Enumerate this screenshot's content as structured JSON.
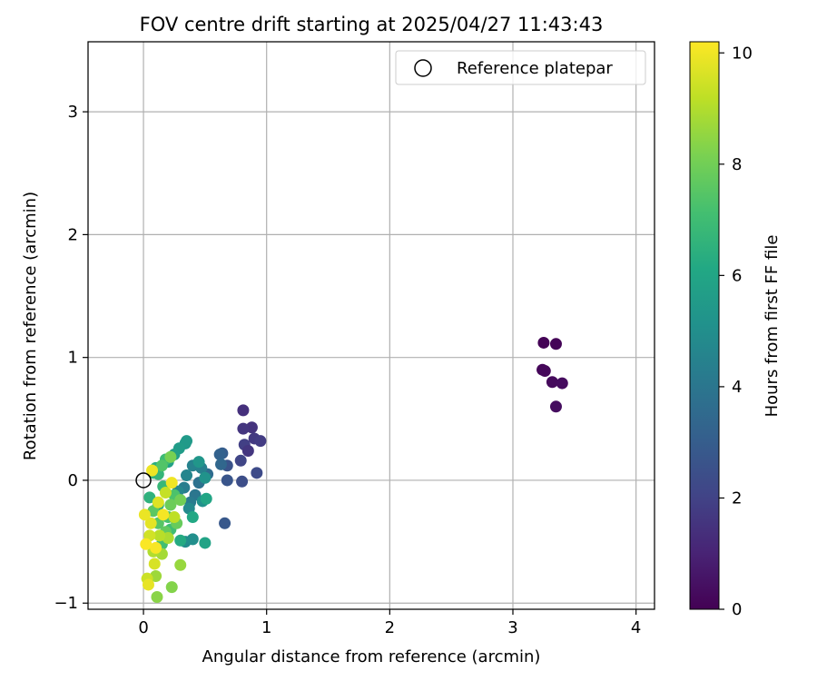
{
  "chart_data": {
    "type": "scatter",
    "title": "FOV centre drift starting at 2025/04/27 11:43:43",
    "xlabel": "Angular distance from reference (arcmin)",
    "ylabel": "Rotation from reference (arcmin)",
    "xlim": [
      -0.45,
      4.15
    ],
    "ylim": [
      -1.05,
      3.57
    ],
    "xticks": [
      0,
      1,
      2,
      3,
      4
    ],
    "yticks": [
      -1,
      0,
      1,
      2,
      3
    ],
    "xtick_labels": [
      "0",
      "1",
      "2",
      "3",
      "4"
    ],
    "ytick_labels": [
      "−1",
      "0",
      "1",
      "2",
      "3"
    ],
    "grid": true,
    "legend": {
      "placement": "top-right",
      "entries": [
        {
          "label": "Reference platepar",
          "marker": "open-circle"
        }
      ]
    },
    "reference_point": {
      "x": 0,
      "y": 0
    },
    "colorbar": {
      "label": "Hours from first FF file",
      "colormap": "viridis",
      "range": [
        0,
        10.2
      ],
      "ticks": [
        0,
        2,
        4,
        6,
        8,
        10
      ],
      "tick_labels": [
        "0",
        "2",
        "4",
        "6",
        "8",
        "10"
      ]
    },
    "points": [
      {
        "x": 3.25,
        "y": 1.12,
        "c": 0.05
      },
      {
        "x": 3.35,
        "y": 1.11,
        "c": 0.1
      },
      {
        "x": 3.24,
        "y": 0.9,
        "c": 0.15
      },
      {
        "x": 3.26,
        "y": 0.89,
        "c": 0.2
      },
      {
        "x": 3.32,
        "y": 0.8,
        "c": 0.25
      },
      {
        "x": 3.4,
        "y": 0.79,
        "c": 0.3
      },
      {
        "x": 3.35,
        "y": 0.6,
        "c": 0.35
      },
      {
        "x": 0.81,
        "y": 0.57,
        "c": 1.4
      },
      {
        "x": 0.88,
        "y": 0.43,
        "c": 1.5
      },
      {
        "x": 0.81,
        "y": 0.42,
        "c": 1.6
      },
      {
        "x": 0.9,
        "y": 0.34,
        "c": 1.7
      },
      {
        "x": 0.95,
        "y": 0.32,
        "c": 1.8
      },
      {
        "x": 0.82,
        "y": 0.29,
        "c": 1.9
      },
      {
        "x": 0.85,
        "y": 0.24,
        "c": 1.6
      },
      {
        "x": 0.79,
        "y": 0.16,
        "c": 2.1
      },
      {
        "x": 0.92,
        "y": 0.06,
        "c": 2.3
      },
      {
        "x": 0.8,
        "y": -0.01,
        "c": 2.4
      },
      {
        "x": 0.68,
        "y": 0.12,
        "c": 2.6
      },
      {
        "x": 0.68,
        "y": 0.0,
        "c": 2.7
      },
      {
        "x": 0.66,
        "y": -0.35,
        "c": 2.8
      },
      {
        "x": 0.64,
        "y": 0.22,
        "c": 3.0
      },
      {
        "x": 0.62,
        "y": 0.21,
        "c": 3.2
      },
      {
        "x": 0.63,
        "y": 0.13,
        "c": 3.4
      },
      {
        "x": 0.52,
        "y": 0.05,
        "c": 3.6
      },
      {
        "x": 0.45,
        "y": -0.02,
        "c": 3.8
      },
      {
        "x": 0.42,
        "y": -0.12,
        "c": 4.0
      },
      {
        "x": 0.38,
        "y": -0.18,
        "c": 4.2
      },
      {
        "x": 0.33,
        "y": -0.06,
        "c": 4.3
      },
      {
        "x": 0.47,
        "y": 0.1,
        "c": 4.4
      },
      {
        "x": 0.4,
        "y": 0.12,
        "c": 4.5
      },
      {
        "x": 0.35,
        "y": 0.04,
        "c": 4.6
      },
      {
        "x": 0.28,
        "y": -0.09,
        "c": 4.7
      },
      {
        "x": 0.37,
        "y": -0.23,
        "c": 4.8
      },
      {
        "x": 0.34,
        "y": -0.5,
        "c": 4.9
      },
      {
        "x": 0.4,
        "y": -0.48,
        "c": 5.0
      },
      {
        "x": 0.48,
        "y": -0.17,
        "c": 5.1
      },
      {
        "x": 0.5,
        "y": 0.02,
        "c": 5.2
      },
      {
        "x": 0.45,
        "y": 0.15,
        "c": 5.3
      },
      {
        "x": 0.34,
        "y": 0.3,
        "c": 5.4
      },
      {
        "x": 0.35,
        "y": 0.32,
        "c": 5.5
      },
      {
        "x": 0.29,
        "y": 0.26,
        "c": 5.6
      },
      {
        "x": 0.25,
        "y": 0.21,
        "c": 5.7
      },
      {
        "x": 0.2,
        "y": 0.15,
        "c": 5.8
      },
      {
        "x": 0.5,
        "y": -0.51,
        "c": 5.9
      },
      {
        "x": 0.51,
        "y": -0.15,
        "c": 6.0
      },
      {
        "x": 0.4,
        "y": -0.3,
        "c": 6.1
      },
      {
        "x": 0.3,
        "y": -0.49,
        "c": 6.2
      },
      {
        "x": 0.12,
        "y": -0.2,
        "c": 6.3
      },
      {
        "x": 0.1,
        "y": 0.1,
        "c": 6.4
      },
      {
        "x": 0.05,
        "y": -0.14,
        "c": 6.5
      },
      {
        "x": 0.08,
        "y": 0.06,
        "c": 6.6
      },
      {
        "x": 0.12,
        "y": 0.05,
        "c": 6.7
      },
      {
        "x": 0.16,
        "y": -0.05,
        "c": 6.8
      },
      {
        "x": 0.18,
        "y": 0.17,
        "c": 6.9
      },
      {
        "x": 0.22,
        "y": -0.4,
        "c": 7.0
      },
      {
        "x": 0.15,
        "y": -0.52,
        "c": 7.1
      },
      {
        "x": 0.2,
        "y": -0.3,
        "c": 7.2
      },
      {
        "x": 0.25,
        "y": -0.12,
        "c": 7.3
      },
      {
        "x": 0.15,
        "y": 0.12,
        "c": 7.4
      },
      {
        "x": 0.12,
        "y": -0.35,
        "c": 7.5
      },
      {
        "x": 0.08,
        "y": -0.25,
        "c": 7.6
      },
      {
        "x": 0.18,
        "y": -0.42,
        "c": 7.7
      },
      {
        "x": 0.27,
        "y": -0.35,
        "c": 7.8
      },
      {
        "x": 0.22,
        "y": -0.2,
        "c": 7.9
      },
      {
        "x": 0.3,
        "y": -0.16,
        "c": 8.0
      },
      {
        "x": 0.22,
        "y": 0.19,
        "c": 8.1
      },
      {
        "x": 0.23,
        "y": -0.87,
        "c": 8.3
      },
      {
        "x": 0.11,
        "y": -0.95,
        "c": 8.4
      },
      {
        "x": 0.3,
        "y": -0.69,
        "c": 8.6
      },
      {
        "x": 0.1,
        "y": -0.78,
        "c": 8.7
      },
      {
        "x": 0.15,
        "y": -0.6,
        "c": 8.8
      },
      {
        "x": 0.2,
        "y": -0.47,
        "c": 8.9
      },
      {
        "x": 0.08,
        "y": -0.58,
        "c": 9.0
      },
      {
        "x": 0.13,
        "y": -0.45,
        "c": 9.1
      },
      {
        "x": 0.25,
        "y": -0.3,
        "c": 9.2
      },
      {
        "x": 0.18,
        "y": -0.1,
        "c": 9.3
      },
      {
        "x": 0.03,
        "y": -0.8,
        "c": 9.4
      },
      {
        "x": 0.05,
        "y": -0.45,
        "c": 9.5
      },
      {
        "x": 0.09,
        "y": -0.68,
        "c": 9.6
      },
      {
        "x": 0.12,
        "y": -0.18,
        "c": 9.7
      },
      {
        "x": 0.06,
        "y": -0.35,
        "c": 9.8
      },
      {
        "x": 0.04,
        "y": -0.85,
        "c": 9.85
      },
      {
        "x": 0.01,
        "y": -0.28,
        "c": 9.9
      },
      {
        "x": 0.07,
        "y": 0.08,
        "c": 9.95
      },
      {
        "x": 0.23,
        "y": -0.02,
        "c": 10.0
      },
      {
        "x": 0.16,
        "y": -0.28,
        "c": 10.05
      },
      {
        "x": 0.1,
        "y": -0.55,
        "c": 10.1
      },
      {
        "x": 0.02,
        "y": -0.52,
        "c": 10.15
      }
    ]
  }
}
